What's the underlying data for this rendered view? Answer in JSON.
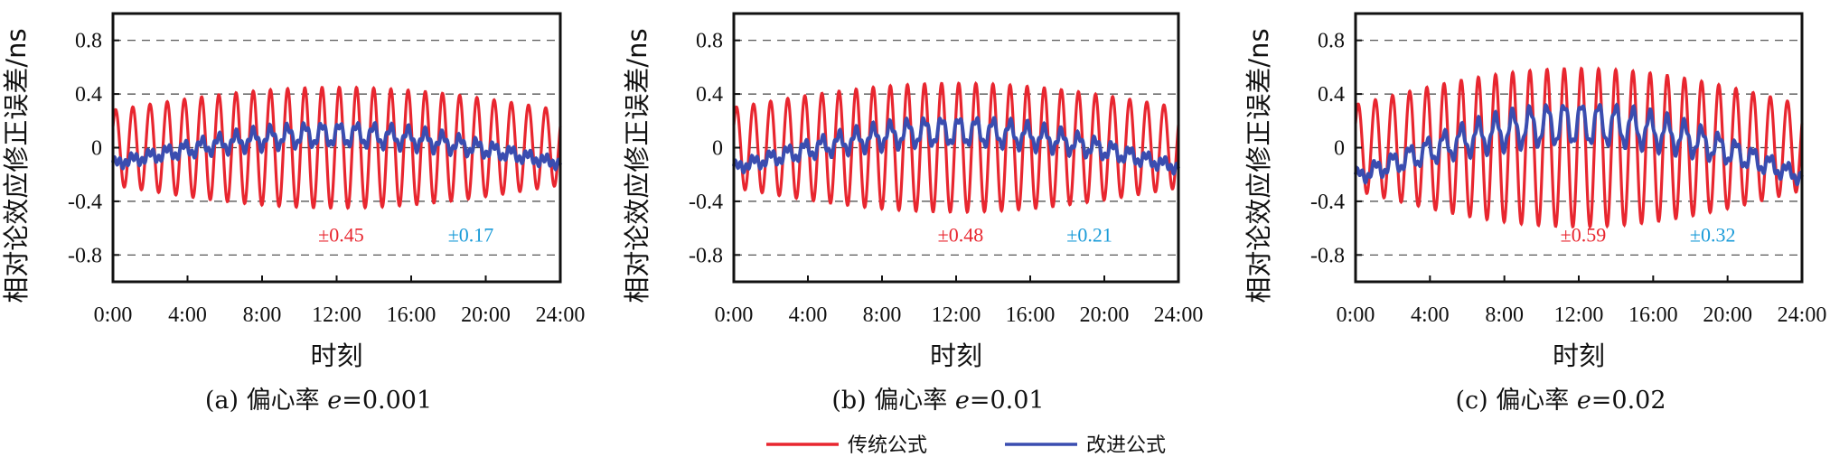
{
  "colors": {
    "traditional": "#e8262f",
    "improved": "#3a4db0",
    "ann_red": "#e8262f",
    "ann_blue": "#1a9bd8"
  },
  "legend": {
    "traditional": "传统公式",
    "improved": "改进公式"
  },
  "chart_data": [
    {
      "type": "line",
      "caption_prefix": "(a) 偏心率 ",
      "caption_var": "e",
      "caption_value": "=0.001",
      "xlabel": "时刻",
      "ylabel": "相对论效应修正误差/ns",
      "xticks": [
        "0:00",
        "4:00",
        "8:00",
        "12:00",
        "16:00",
        "20:00",
        "24:00"
      ],
      "yticks": [
        "0.8",
        "0.4",
        "0",
        "-0.4",
        "-0.8"
      ],
      "ylim": [
        -1.0,
        1.0
      ],
      "xlim_hours": [
        0,
        24
      ],
      "grid_y": [
        0.8,
        0.4,
        0,
        -0.4,
        -0.8
      ],
      "annotation_red": "±0.45",
      "annotation_blue": "±0.17",
      "series": [
        {
          "name": "传统公式",
          "amp_max": 0.45,
          "amp_min": 0.28,
          "cycles": 26
        },
        {
          "name": "改进公式",
          "amp_max": 0.17,
          "amp_min": 0.04,
          "cycles": 26,
          "trend": 0.12
        }
      ]
    },
    {
      "type": "line",
      "caption_prefix": "(b) 偏心率 ",
      "caption_var": "e",
      "caption_value": "=0.01",
      "xlabel": "时刻",
      "ylabel": "相对论效应修正误差/ns",
      "xticks": [
        "0:00",
        "4:00",
        "8:00",
        "12:00",
        "16:00",
        "20:00",
        "24:00"
      ],
      "yticks": [
        "0.8",
        "0.4",
        "0",
        "-0.4",
        "-0.8"
      ],
      "ylim": [
        -1.0,
        1.0
      ],
      "xlim_hours": [
        0,
        24
      ],
      "grid_y": [
        0.8,
        0.4,
        0,
        -0.4,
        -0.8
      ],
      "annotation_red": "±0.48",
      "annotation_blue": "±0.21",
      "series": [
        {
          "name": "传统公式",
          "amp_max": 0.48,
          "amp_min": 0.3,
          "cycles": 26
        },
        {
          "name": "改进公式",
          "amp_max": 0.21,
          "amp_min": 0.05,
          "cycles": 26,
          "trend": 0.15
        }
      ]
    },
    {
      "type": "line",
      "caption_prefix": "(c) 偏心率 ",
      "caption_var": "e",
      "caption_value": "=0.02",
      "xlabel": "时刻",
      "ylabel": "相对论效应修正误差/ns",
      "xticks": [
        "0:00",
        "4:00",
        "8:00",
        "12:00",
        "16:00",
        "20:00",
        "24:00"
      ],
      "yticks": [
        "0.8",
        "0.4",
        "0",
        "-0.4",
        "-0.8"
      ],
      "ylim": [
        -1.0,
        1.0
      ],
      "xlim_hours": [
        0,
        24
      ],
      "grid_y": [
        0.8,
        0.4,
        0,
        -0.4,
        -0.8
      ],
      "annotation_red": "±0.59",
      "annotation_blue": "±0.32",
      "series": [
        {
          "name": "传统公式",
          "amp_max": 0.59,
          "amp_min": 0.32,
          "cycles": 26
        },
        {
          "name": "改进公式",
          "amp_max": 0.32,
          "amp_min": 0.08,
          "cycles": 26,
          "trend": 0.22
        }
      ]
    }
  ]
}
